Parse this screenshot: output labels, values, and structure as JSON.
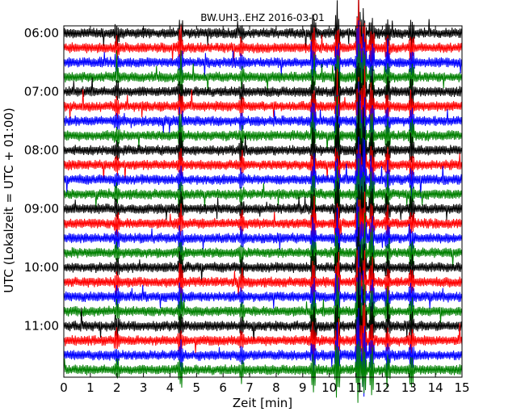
{
  "chart_data": {
    "type": "line",
    "title": "BW.UH3..EHZ 2016-03-01",
    "xlabel": "Zeit  [min]",
    "ylabel": "UTC (Lokalzeit = UTC + 01:00)",
    "xlim": [
      0,
      15
    ],
    "x_ticks": [
      "0",
      "1",
      "2",
      "3",
      "4",
      "5",
      "6",
      "7",
      "8",
      "9",
      "10",
      "11",
      "12",
      "13",
      "14",
      "15"
    ],
    "y_tick_labels": [
      "06:00",
      "07:00",
      "08:00",
      "09:00",
      "10:00",
      "11:00"
    ],
    "trace_interval_min": 15,
    "trace_count": 24,
    "series_color_cycle": [
      "#000000",
      "#ff0000",
      "#0000ff",
      "#008000"
    ],
    "grid": false,
    "events": [
      {
        "x": 10.3,
        "amp": 3.2
      },
      {
        "x": 11.1,
        "amp": 5.0
      },
      {
        "x": 11.3,
        "amp": 4.0
      },
      {
        "x": 11.6,
        "amp": 2.6
      },
      {
        "x": 9.4,
        "amp": 2.4
      },
      {
        "x": 4.4,
        "amp": 1.8
      },
      {
        "x": 12.2,
        "amp": 1.6
      },
      {
        "x": 13.1,
        "amp": 1.5
      },
      {
        "x": 2.0,
        "amp": 1.0
      },
      {
        "x": 6.7,
        "amp": 0.9
      }
    ]
  }
}
